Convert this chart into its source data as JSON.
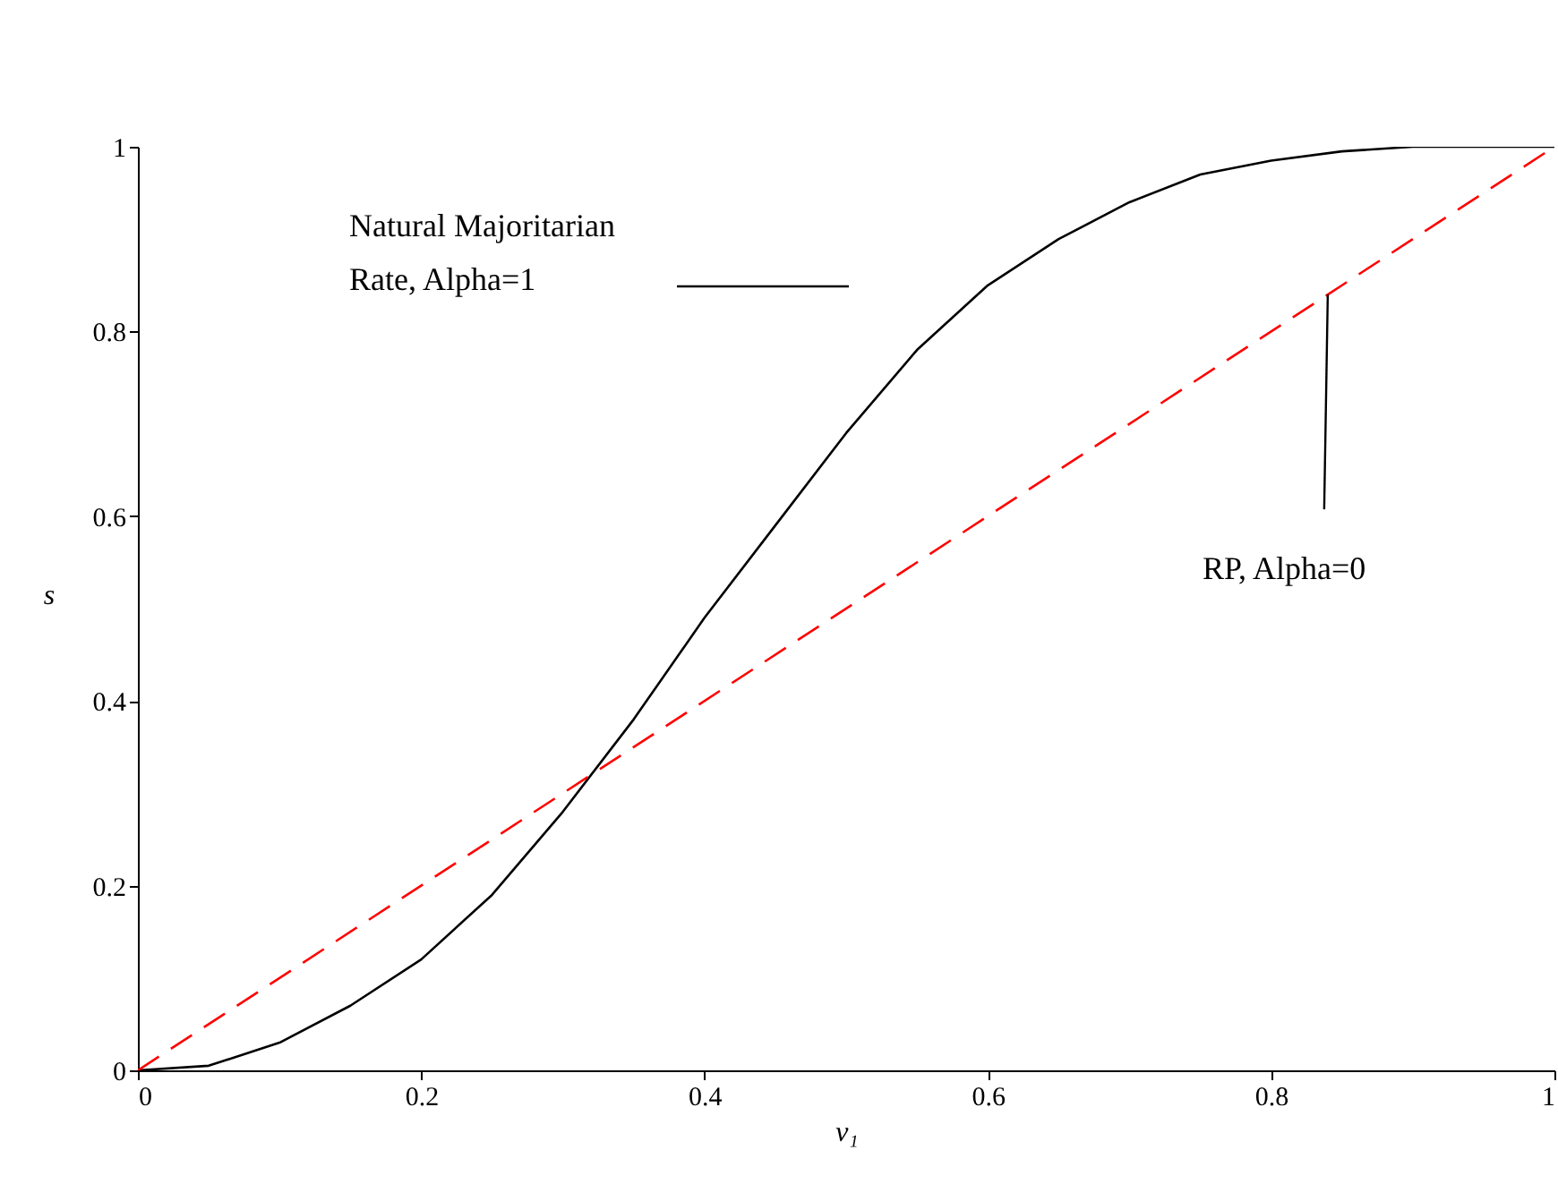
{
  "chart_data": {
    "type": "line",
    "xlabel": "v₁",
    "ylabel": "s",
    "xlim": [
      0,
      1
    ],
    "ylim": [
      0,
      1
    ],
    "xticks": [
      0,
      0.2,
      0.4,
      0.6,
      0.8,
      1
    ],
    "yticks": [
      0,
      0.2,
      0.4,
      0.6,
      0.8,
      1
    ],
    "grid": false,
    "marker": "none",
    "legend": "top left",
    "series": [
      {
        "name": "Natural Majoritarian\nRate, Alpha=1",
        "color": "#000000",
        "line_style": "solid",
        "x": [
          0,
          0.05,
          0.1,
          0.15,
          0.2,
          0.25,
          0.3,
          0.35,
          0.4,
          0.45,
          0.5,
          0.55,
          0.6,
          0.65,
          0.7,
          0.75,
          0.8,
          0.85,
          0.9,
          0.95,
          1
        ],
        "values": [
          0,
          0.005,
          0.03,
          0.07,
          0.12,
          0.19,
          0.28,
          0.38,
          0.49,
          0.59,
          0.69,
          0.78,
          0.85,
          0.9,
          0.94,
          0.97,
          0.985,
          0.995,
          1,
          1,
          1
        ]
      },
      {
        "color": "#ff0000",
        "line_style": "dashed",
        "x": [
          0,
          1
        ],
        "values": [
          0,
          1
        ]
      }
    ],
    "annotations": [
      {
        "text": "RP, Alpha=0",
        "x": 0.84,
        "y": 0.84
      }
    ]
  }
}
